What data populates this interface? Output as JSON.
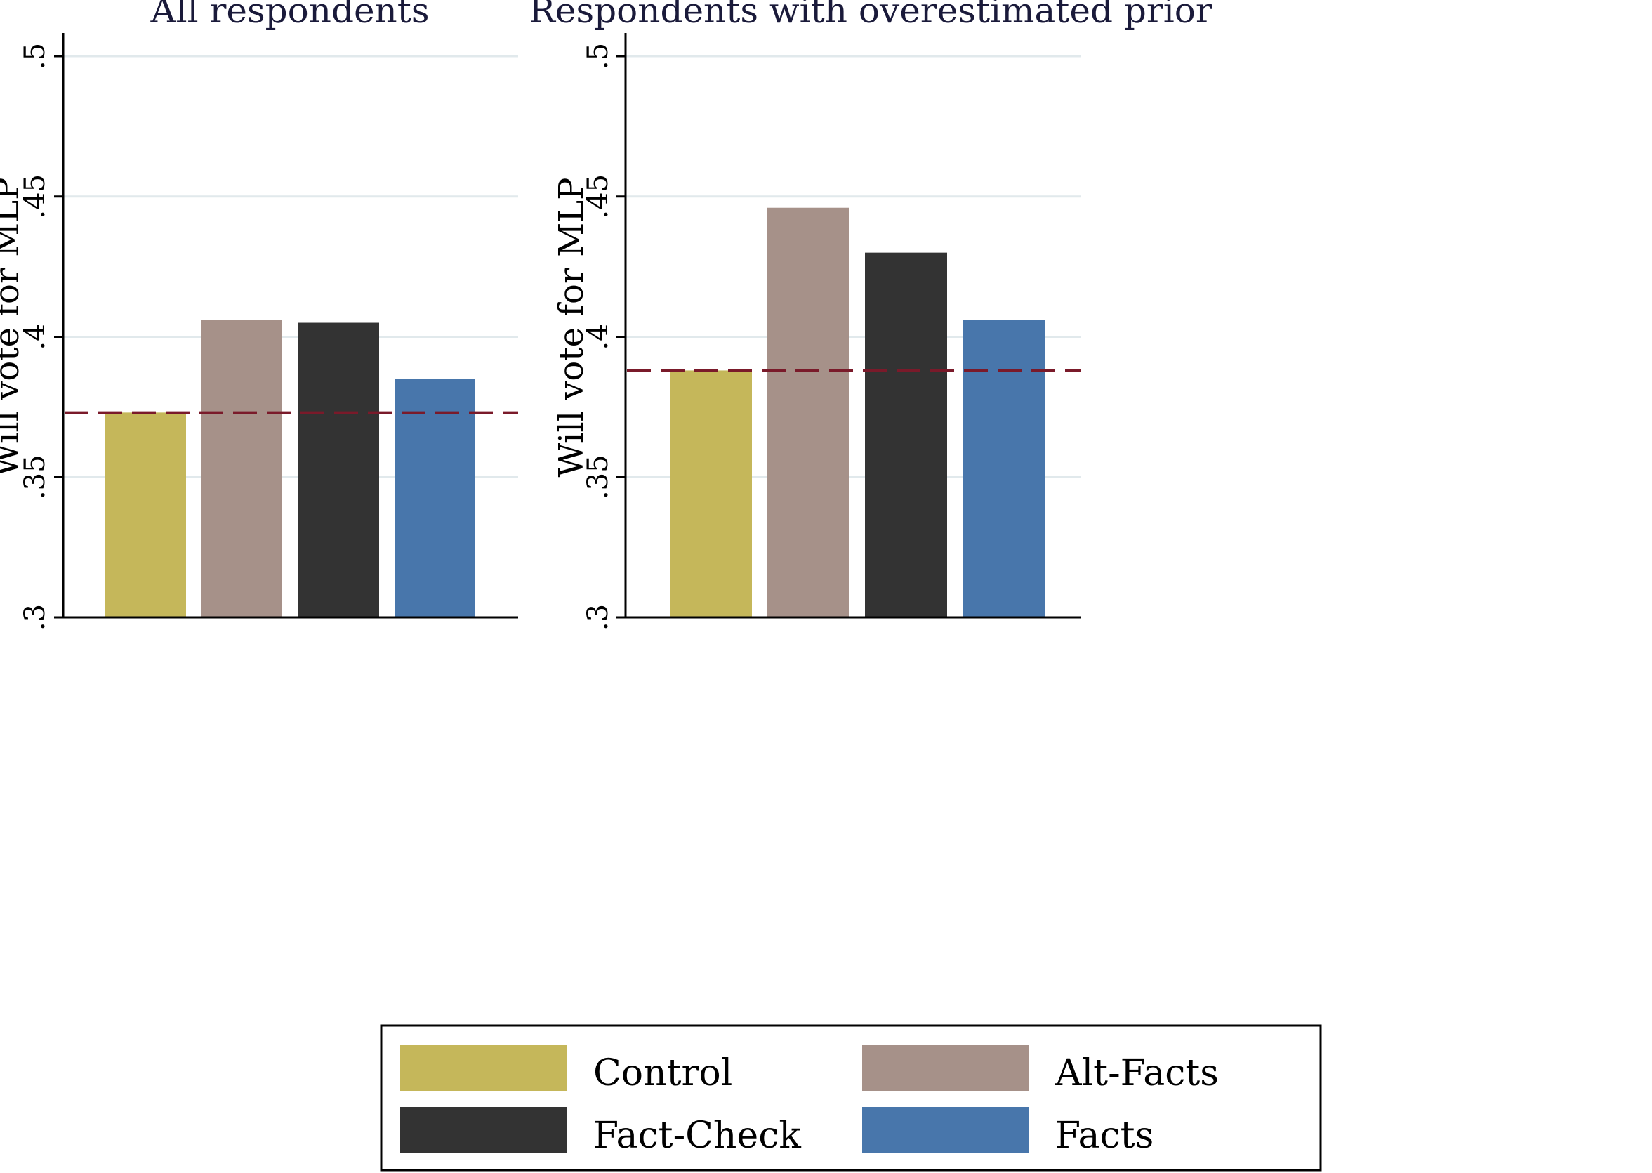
{
  "chart_data": [
    {
      "type": "bar",
      "title": "All respondents",
      "ylabel": "Will vote for MLP",
      "xlabel": "",
      "ylim": [
        0.3,
        0.5
      ],
      "yticks": [
        ".3",
        ".35",
        ".4",
        ".45",
        ".5"
      ],
      "ytick_values": [
        0.3,
        0.35,
        0.4,
        0.45,
        0.5
      ],
      "categories": [
        "Control",
        "Alt-Facts",
        "Fact-Check",
        "Facts"
      ],
      "values": [
        0.373,
        0.406,
        0.405,
        0.385
      ],
      "reference_line": {
        "value": 0.373,
        "style": "dashed"
      },
      "grid": true
    },
    {
      "type": "bar",
      "title": "Respondents with overestimated prior",
      "ylabel": "Will vote for MLP",
      "xlabel": "",
      "ylim": [
        0.3,
        0.5
      ],
      "yticks": [
        ".3",
        ".35",
        ".4",
        ".45",
        ".5"
      ],
      "ytick_values": [
        0.3,
        0.35,
        0.4,
        0.45,
        0.5
      ],
      "categories": [
        "Control",
        "Alt-Facts",
        "Fact-Check",
        "Facts"
      ],
      "values": [
        0.388,
        0.446,
        0.43,
        0.406
      ],
      "reference_line": {
        "value": 0.388,
        "style": "dashed"
      },
      "grid": true
    }
  ],
  "legend": {
    "placement": "bottom",
    "items": [
      {
        "label": "Control",
        "color": "#c5b75a"
      },
      {
        "label": "Alt-Facts",
        "color": "#a69189"
      },
      {
        "label": "Fact-Check",
        "color": "#333333"
      },
      {
        "label": "Facts",
        "color": "#4876ab"
      }
    ]
  },
  "colors": {
    "reference_line": "#7a1a2a",
    "grid": "#e1e9ec",
    "axis": "#000000"
  }
}
